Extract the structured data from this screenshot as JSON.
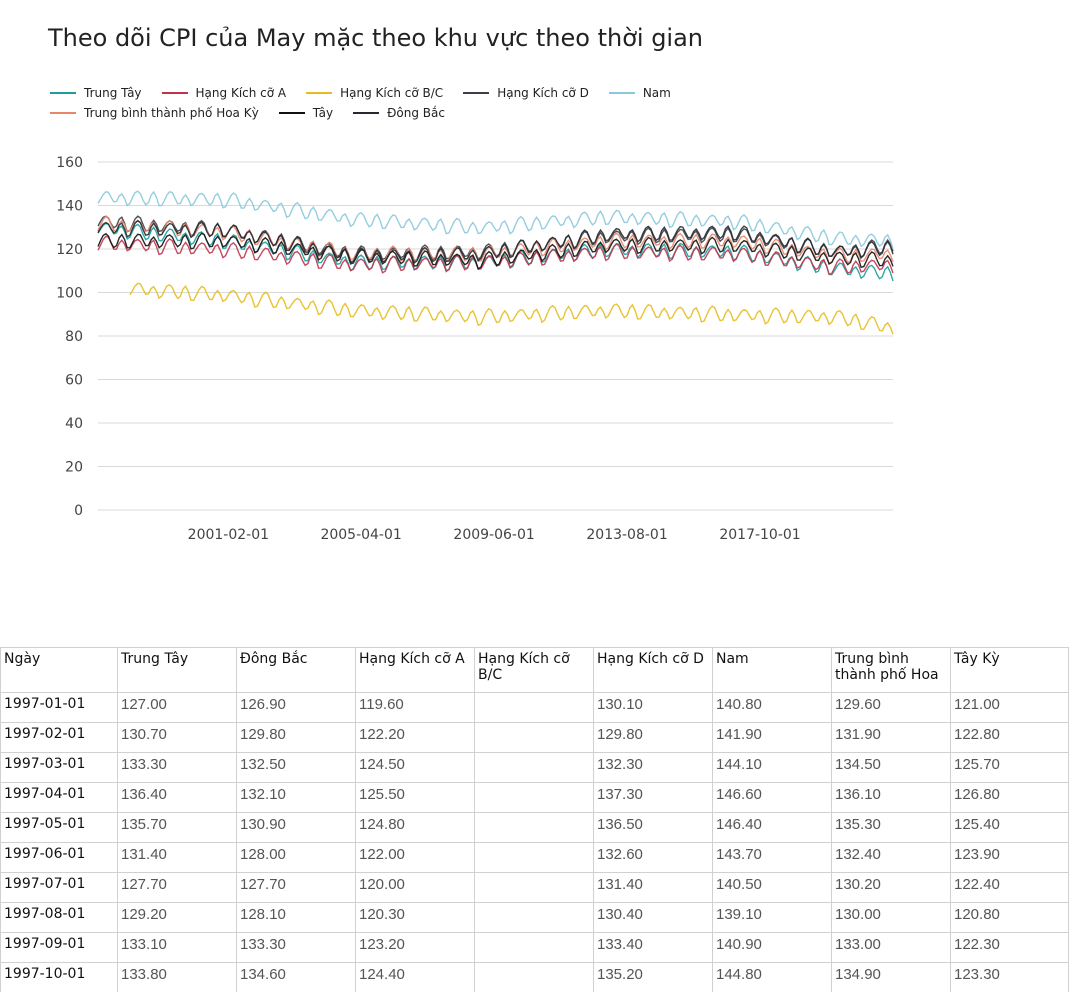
{
  "chart_data": {
    "type": "line",
    "title": "Theo dõi CPI của May mặc theo khu vực theo thời gian",
    "xlabel": "",
    "ylabel": "",
    "ylim": [
      0,
      160
    ],
    "yticks": [
      0,
      20,
      40,
      60,
      80,
      100,
      120,
      140,
      160
    ],
    "x_tick_labels": [
      "2001-02-01",
      "2005-04-01",
      "2009-06-01",
      "2013-08-01",
      "2017-10-01"
    ],
    "x_range": [
      "1997-01-01",
      "2021-12-01"
    ],
    "grid": true,
    "legend_position": "top",
    "seasonal_pattern": [
      0,
      2.8,
      5.2,
      6.4,
      5.6,
      2.6,
      0.2,
      0.8,
      4.2,
      5.6,
      3.2,
      -0.6
    ],
    "series": [
      {
        "name": "Trung Tây",
        "color": "#1a9e9e",
        "x": [
          "1997-01-01",
          "2001-01-01",
          "2005-01-01",
          "2009-01-01",
          "2013-01-01",
          "2017-01-01",
          "2020-03-01",
          "2021-12-01"
        ],
        "y": [
          127,
          121,
          111,
          111,
          117,
          116,
          108,
          106
        ]
      },
      {
        "name": "Hạng Kích cỡ A",
        "color": "#c0344b",
        "x": [
          "1997-01-01",
          "2001-01-01",
          "2005-01-01",
          "2009-01-01",
          "2013-01-01",
          "2017-01-01",
          "2020-03-01",
          "2021-12-01"
        ],
        "y": [
          120,
          117,
          110,
          111,
          116,
          115,
          109,
          110
        ]
      },
      {
        "name": "Hạng Kích cỡ B/C",
        "color": "#e6bd1e",
        "x": [
          "1998-01-01",
          "2001-01-01",
          "2005-01-01",
          "2009-01-01",
          "2013-01-01",
          "2017-01-01",
          "2020-03-01",
          "2021-12-01"
        ],
        "y": [
          99,
          96,
          89,
          86,
          89,
          87,
          86,
          81
        ]
      },
      {
        "name": "Hạng Kích cỡ D",
        "color": "#3a3f48",
        "x": [
          "1997-01-01",
          "2001-01-01",
          "2005-01-01",
          "2009-01-01",
          "2013-01-01",
          "2017-01-01",
          "2020-03-01",
          "2021-12-01"
        ],
        "y": [
          130,
          126,
          115,
          116,
          123,
          124,
          116,
          119
        ]
      },
      {
        "name": "Nam",
        "color": "#8ac9dc",
        "x": [
          "1997-01-01",
          "2001-01-01",
          "2005-01-01",
          "2009-01-01",
          "2013-01-01",
          "2017-01-01",
          "2020-03-01",
          "2021-12-01"
        ],
        "y": [
          141,
          140,
          131,
          127,
          132,
          130,
          122,
          121
        ]
      },
      {
        "name": "Trung bình thành phố Hoa Kỳ",
        "color": "#e8866a",
        "x": [
          "1997-01-01",
          "2001-01-01",
          "2005-01-01",
          "2009-01-01",
          "2013-01-01",
          "2017-01-01",
          "2020-03-01",
          "2021-12-01"
        ],
        "y": [
          129,
          125,
          115,
          115,
          121,
          121,
          114,
          115
        ]
      },
      {
        "name": "Tây",
        "color": "#111111",
        "x": [
          "1997-01-01",
          "2001-01-01",
          "2005-01-01",
          "2009-01-01",
          "2013-01-01",
          "2017-01-01",
          "2020-03-01",
          "2021-12-01"
        ],
        "y": [
          121,
          121,
          114,
          112,
          119,
          119,
          113,
          112
        ]
      },
      {
        "name": "Đông Bắc",
        "color": "#262a30",
        "x": [
          "1997-01-01",
          "2001-01-01",
          "2005-01-01",
          "2009-01-01",
          "2013-01-01",
          "2017-01-01",
          "2020-03-01",
          "2021-12-01"
        ],
        "y": [
          127,
          126,
          114,
          115,
          124,
          125,
          116,
          118
        ]
      }
    ]
  },
  "table": {
    "headers": [
      "Ngày",
      "Trung Tây",
      "Đông Bắc",
      "Hạng Kích cỡ A",
      "Hạng Kích cỡ B/C",
      "Hạng Kích cỡ D",
      "Nam",
      "Trung bình thành phố Hoa",
      "Tây Kỳ"
    ],
    "rows": [
      [
        "1997-01-01",
        "127.00",
        "126.90",
        "119.60",
        "",
        "130.10",
        "140.80",
        "129.60",
        "121.00"
      ],
      [
        "1997-02-01",
        "130.70",
        "129.80",
        "122.20",
        "",
        "129.80",
        "141.90",
        "131.90",
        "122.80"
      ],
      [
        "1997-03-01",
        "133.30",
        "132.50",
        "124.50",
        "",
        "132.30",
        "144.10",
        "134.50",
        "125.70"
      ],
      [
        "1997-04-01",
        "136.40",
        "132.10",
        "125.50",
        "",
        "137.30",
        "146.60",
        "136.10",
        "126.80"
      ],
      [
        "1997-05-01",
        "135.70",
        "130.90",
        "124.80",
        "",
        "136.50",
        "146.40",
        "135.30",
        "125.40"
      ],
      [
        "1997-06-01",
        "131.40",
        "128.00",
        "122.00",
        "",
        "132.60",
        "143.70",
        "132.40",
        "123.90"
      ],
      [
        "1997-07-01",
        "127.70",
        "127.70",
        "120.00",
        "",
        "131.40",
        "140.50",
        "130.20",
        "122.40"
      ],
      [
        "1997-08-01",
        "129.20",
        "128.10",
        "120.30",
        "",
        "130.40",
        "139.10",
        "130.00",
        "120.80"
      ],
      [
        "1997-09-01",
        "133.10",
        "133.30",
        "123.20",
        "",
        "133.40",
        "140.90",
        "133.00",
        "122.30"
      ],
      [
        "1997-10-01",
        "133.80",
        "134.60",
        "124.40",
        "",
        "135.20",
        "144.80",
        "134.90",
        "123.30"
      ]
    ]
  }
}
